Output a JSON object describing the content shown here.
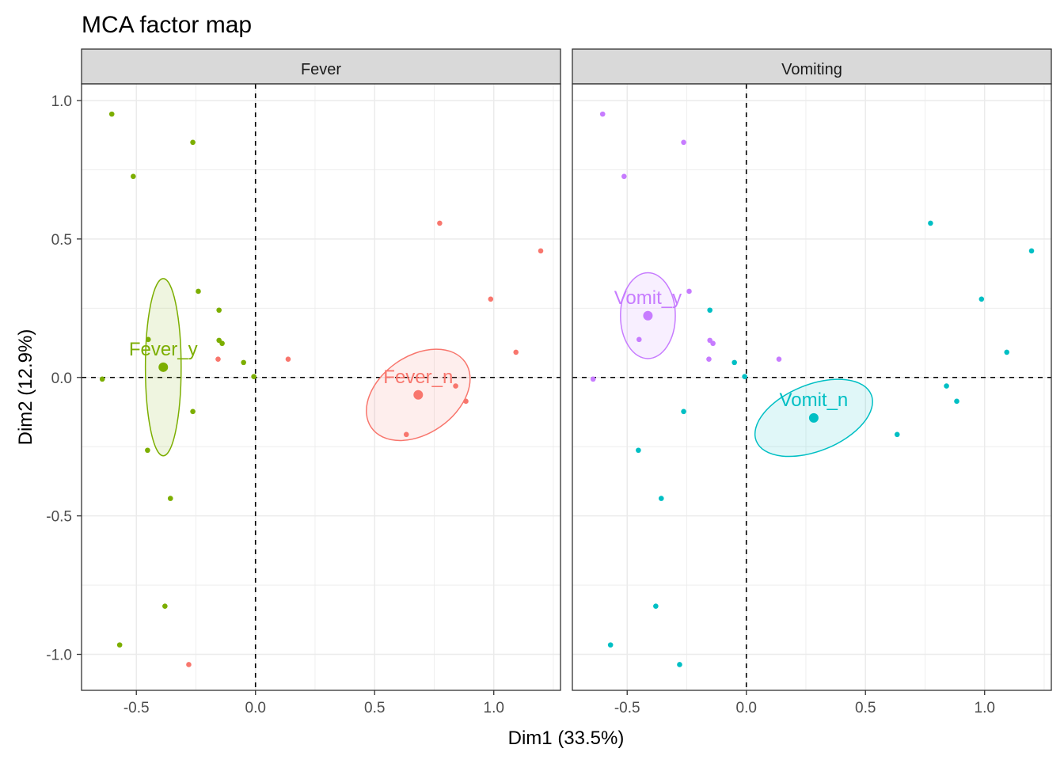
{
  "chart_data": {
    "type": "scatter",
    "title": "MCA factor map",
    "xlabel": "Dim1 (33.5%)",
    "ylabel": "Dim2 (12.9%)",
    "xlim": [
      -0.73,
      1.28
    ],
    "ylim": [
      -1.13,
      1.06
    ],
    "xticks": [
      -0.5,
      0.0,
      0.5,
      1.0
    ],
    "xtick_labels": [
      "-0.5",
      "0.0",
      "0.5",
      "1.0"
    ],
    "yticks": [
      -1.0,
      -0.5,
      0.0,
      0.5,
      1.0
    ],
    "ytick_labels": [
      "-1.0",
      "-0.5",
      "0.0",
      "0.5",
      "1.0"
    ],
    "grid": true,
    "reference_lines": {
      "x": 0,
      "y": 0,
      "style": "dashed"
    },
    "panels": [
      {
        "strip": "Fever",
        "groups": [
          {
            "name": "Fever_y",
            "color": "#7CAE00",
            "centroid": [
              -0.387,
              0.037
            ],
            "ellipse": {
              "center": [
                -0.387,
                0.037
              ],
              "rx": 0.075,
              "ry": 0.32,
              "angle": 0
            },
            "points": [
              [
                -0.603,
                0.951
              ],
              [
                -0.513,
                0.726
              ],
              [
                -0.263,
                0.849
              ],
              [
                -0.24,
                0.311
              ],
              [
                -0.153,
                0.243
              ],
              [
                -0.153,
                0.134
              ],
              [
                -0.14,
                0.123
              ],
              [
                -0.45,
                0.137
              ],
              [
                -0.05,
                0.054
              ],
              [
                -0.643,
                -0.006
              ],
              [
                -0.007,
                0.003
              ],
              [
                -0.263,
                -0.123
              ],
              [
                -0.453,
                -0.263
              ],
              [
                -0.357,
                -0.437
              ],
              [
                -0.38,
                -0.826
              ],
              [
                -0.57,
                -0.966
              ]
            ]
          },
          {
            "name": "Fever_n",
            "color": "#F8766D",
            "centroid": [
              0.683,
              -0.063
            ],
            "ellipse": {
              "center": [
                0.683,
                -0.063
              ],
              "rx": 0.24,
              "ry": 0.14,
              "angle": -35
            },
            "points": [
              [
                -0.157,
                0.066
              ],
              [
                0.137,
                0.066
              ],
              [
                0.773,
                0.557
              ],
              [
                1.197,
                0.457
              ],
              [
                0.987,
                0.283
              ],
              [
                1.093,
                0.091
              ],
              [
                0.84,
                -0.031
              ],
              [
                0.883,
                -0.086
              ],
              [
                0.633,
                -0.206
              ],
              [
                -0.28,
                -1.037
              ]
            ]
          }
        ]
      },
      {
        "strip": "Vomiting",
        "groups": [
          {
            "name": "Vomit_y",
            "color": "#C77CFF",
            "centroid": [
              -0.413,
              0.223
            ],
            "ellipse": {
              "center": [
                -0.413,
                0.223
              ],
              "rx": 0.115,
              "ry": 0.155,
              "angle": 0
            },
            "points": [
              [
                -0.603,
                0.951
              ],
              [
                -0.513,
                0.726
              ],
              [
                -0.263,
                0.849
              ],
              [
                -0.24,
                0.311
              ],
              [
                -0.153,
                0.134
              ],
              [
                -0.14,
                0.123
              ],
              [
                -0.45,
                0.137
              ],
              [
                -0.157,
                0.066
              ],
              [
                -0.643,
                -0.006
              ],
              [
                0.137,
                0.066
              ]
            ]
          },
          {
            "name": "Vomit_n",
            "color": "#00BFC4",
            "centroid": [
              0.283,
              -0.146
            ],
            "ellipse": {
              "center": [
                0.283,
                -0.146
              ],
              "rx": 0.26,
              "ry": 0.12,
              "angle": -22
            },
            "points": [
              [
                -0.153,
                0.243
              ],
              [
                -0.05,
                0.054
              ],
              [
                -0.007,
                0.003
              ],
              [
                -0.263,
                -0.123
              ],
              [
                -0.453,
                -0.263
              ],
              [
                -0.357,
                -0.437
              ],
              [
                -0.38,
                -0.826
              ],
              [
                -0.57,
                -0.966
              ],
              [
                -0.28,
                -1.037
              ],
              [
                0.773,
                0.557
              ],
              [
                1.197,
                0.457
              ],
              [
                0.987,
                0.283
              ],
              [
                1.093,
                0.091
              ],
              [
                0.84,
                -0.031
              ],
              [
                0.883,
                -0.086
              ],
              [
                0.633,
                -0.206
              ]
            ]
          }
        ]
      }
    ]
  }
}
